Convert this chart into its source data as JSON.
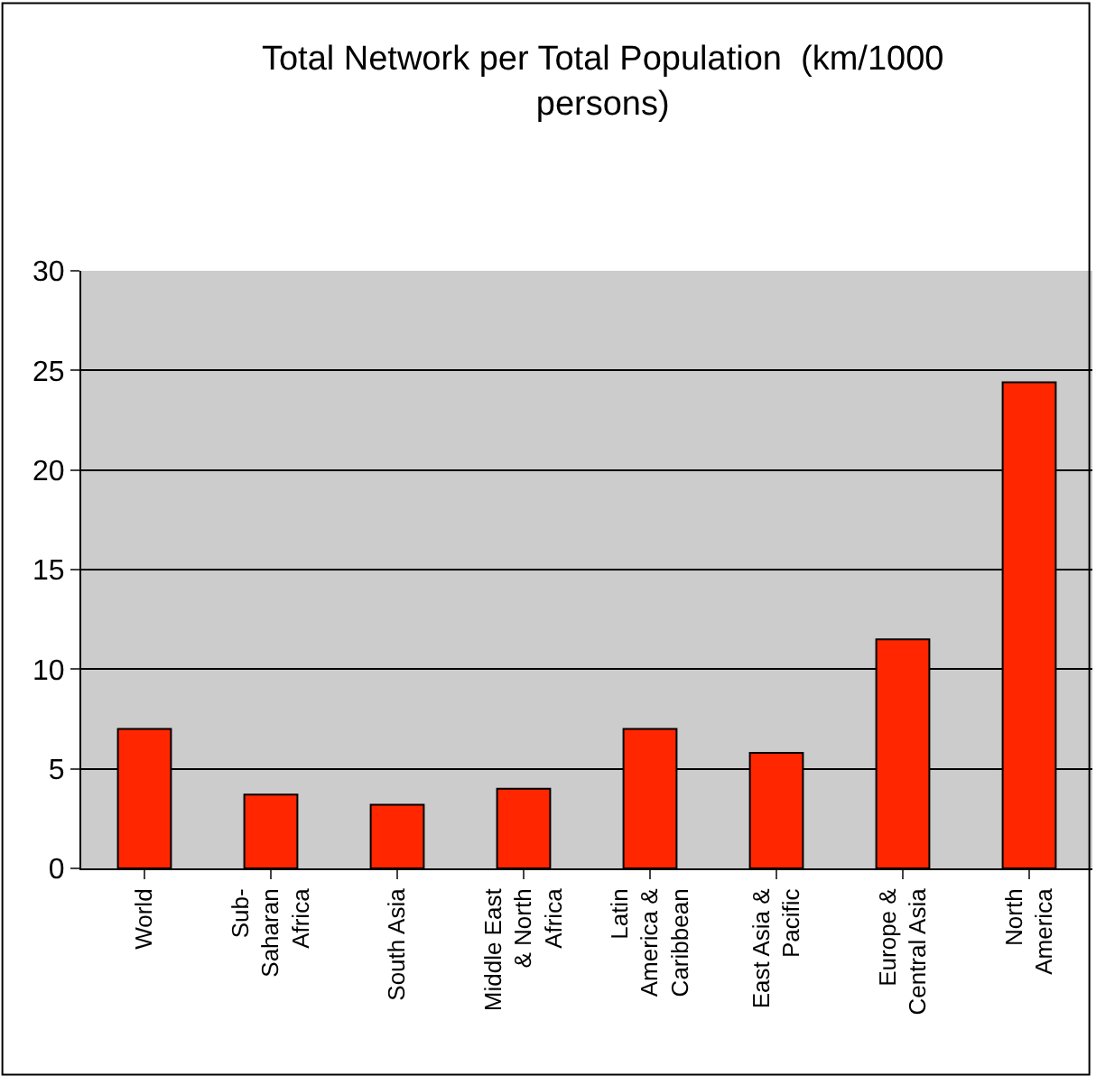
{
  "chart_data": {
    "type": "bar",
    "title": "Total Network per Total Population  (km/1000\npersons)",
    "categories": [
      "World",
      "Sub-\nSaharan\nAfrica",
      "South Asia",
      "Middle East\n& North\nAfrica",
      "Latin\nAmerica &\nCaribbean",
      "East Asia &\nPacific",
      "Europe &\nCentral Asia",
      "North\nAmerica"
    ],
    "values": [
      7.0,
      3.7,
      3.2,
      4.0,
      7.0,
      5.8,
      11.5,
      24.4
    ],
    "color": "#ff2600",
    "ylim": [
      0,
      30
    ],
    "yticks": [
      0,
      5,
      10,
      15,
      20,
      25,
      30
    ],
    "grid": "y"
  }
}
